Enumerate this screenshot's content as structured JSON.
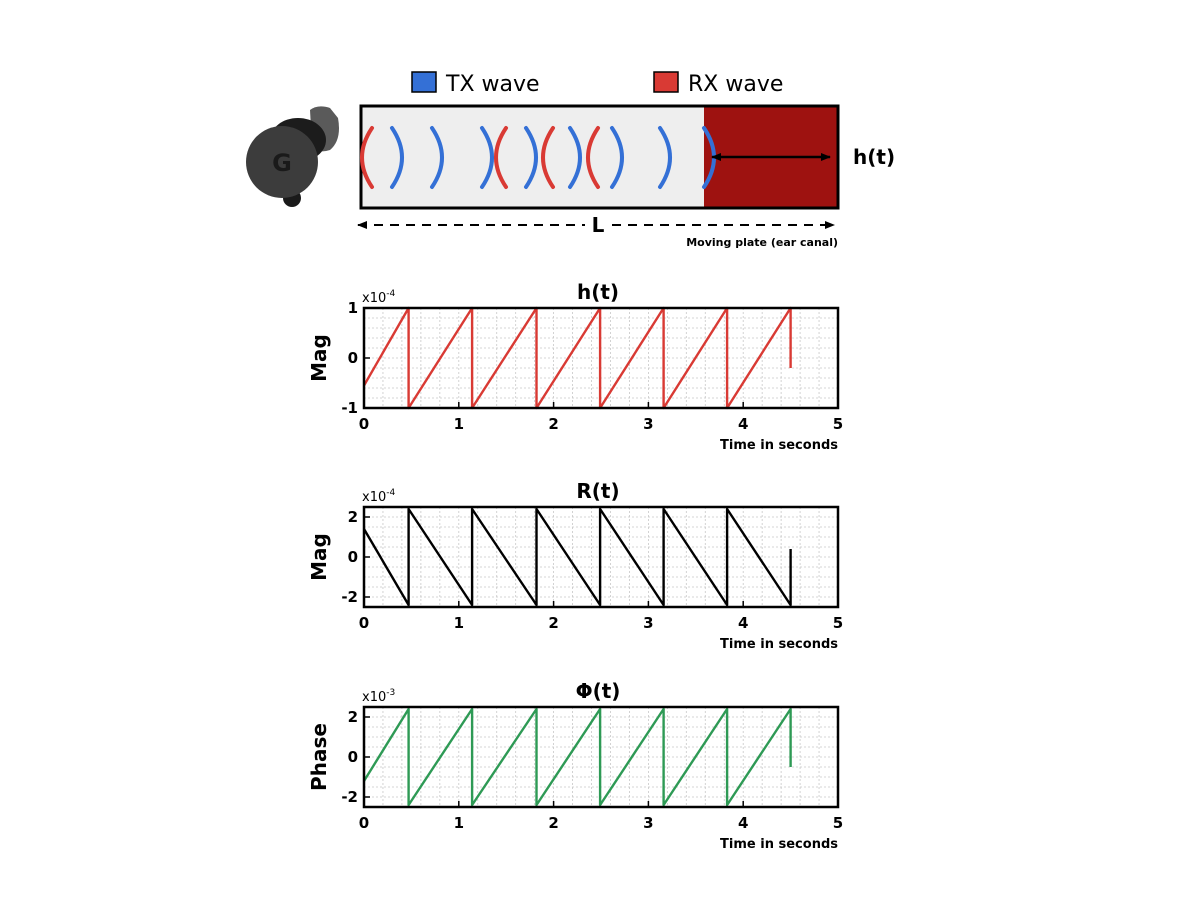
{
  "diagram": {
    "legend": [
      {
        "label": "TX wave",
        "color": "#3470d6"
      },
      {
        "label": "RX wave",
        "color": "#d93a34"
      }
    ],
    "plate_color": "#9e1210",
    "tube_fill": "#eeeeee",
    "h_label": "h(t)",
    "length_label": "L",
    "plate_caption": "Moving plate (ear canal)",
    "earbud_logo": "G",
    "arcs": [
      {
        "side": "left",
        "color": "#d93a34"
      },
      {
        "side": "right",
        "color": "#3470d6"
      },
      {
        "side": "right",
        "color": "#3470d6"
      },
      {
        "side": "right",
        "color": "#3470d6"
      },
      {
        "side": "left",
        "color": "#d93a34"
      },
      {
        "side": "right",
        "color": "#3470d6"
      },
      {
        "side": "left",
        "color": "#d93a34"
      },
      {
        "side": "right",
        "color": "#3470d6"
      },
      {
        "side": "left",
        "color": "#d93a34"
      },
      {
        "side": "right",
        "color": "#3470d6"
      },
      {
        "side": "right",
        "color": "#3470d6"
      },
      {
        "side": "right",
        "color": "#3470d6"
      }
    ]
  },
  "chart_data": [
    {
      "type": "line",
      "title": "h(t)",
      "ylabel": "Mag",
      "xlabel": "Time in seconds",
      "exponent": "x10",
      "exponent_power": "-4",
      "color": "#d93a34",
      "xlim": [
        0,
        5
      ],
      "ylim": [
        -1,
        1
      ],
      "xticks": [
        "0",
        "1",
        "2",
        "3",
        "4",
        "5"
      ],
      "yticks": [
        {
          "v": 1,
          "t": "1"
        },
        {
          "v": 0,
          "t": "0"
        },
        {
          "v": -1,
          "t": "-1"
        }
      ],
      "grid": true,
      "x": [
        0,
        0.47,
        0.47,
        1.14,
        1.14,
        1.82,
        1.82,
        2.49,
        2.49,
        3.16,
        3.16,
        3.83,
        3.83,
        4.5,
        4.5
      ],
      "y": [
        -0.55,
        1,
        -1,
        1,
        -1,
        1,
        -1,
        1,
        -1,
        1,
        -1,
        1,
        -1,
        1,
        -0.2
      ]
    },
    {
      "type": "line",
      "title": "R(t)",
      "ylabel": "Mag",
      "xlabel": "Time in seconds",
      "exponent": "x10",
      "exponent_power": "-4",
      "color": "#000000",
      "xlim": [
        0,
        5
      ],
      "ylim": [
        -2.5,
        2.5
      ],
      "xticks": [
        "0",
        "1",
        "2",
        "3",
        "4",
        "5"
      ],
      "yticks": [
        {
          "v": 2,
          "t": "2"
        },
        {
          "v": 0,
          "t": "0"
        },
        {
          "v": -2,
          "t": "-2"
        }
      ],
      "grid": true,
      "x": [
        0,
        0.47,
        0.47,
        1.14,
        1.14,
        1.82,
        1.82,
        2.49,
        2.49,
        3.16,
        3.16,
        3.83,
        3.83,
        4.5,
        4.5
      ],
      "y": [
        1.4,
        -2.4,
        2.4,
        -2.4,
        2.4,
        -2.4,
        2.4,
        -2.4,
        2.4,
        -2.4,
        2.4,
        -2.4,
        2.4,
        -2.4,
        0.4
      ]
    },
    {
      "type": "line",
      "title": "Φ(t)",
      "ylabel": "Phase",
      "xlabel": "Time in seconds",
      "exponent": "x10",
      "exponent_power": "-3",
      "color": "#2e9a55",
      "xlim": [
        0,
        5
      ],
      "ylim": [
        -2.5,
        2.5
      ],
      "xticks": [
        "0",
        "1",
        "2",
        "3",
        "4",
        "5"
      ],
      "yticks": [
        {
          "v": 2,
          "t": "2"
        },
        {
          "v": 0,
          "t": "0"
        },
        {
          "v": -2,
          "t": "-2"
        }
      ],
      "grid": true,
      "x": [
        0,
        0.47,
        0.47,
        1.14,
        1.14,
        1.82,
        1.82,
        2.49,
        2.49,
        3.16,
        3.16,
        3.83,
        3.83,
        4.5,
        4.5
      ],
      "y": [
        -1.2,
        2.4,
        -2.4,
        2.4,
        -2.4,
        2.4,
        -2.4,
        2.4,
        -2.4,
        2.4,
        -2.4,
        2.4,
        -2.4,
        2.4,
        -0.5
      ]
    }
  ]
}
